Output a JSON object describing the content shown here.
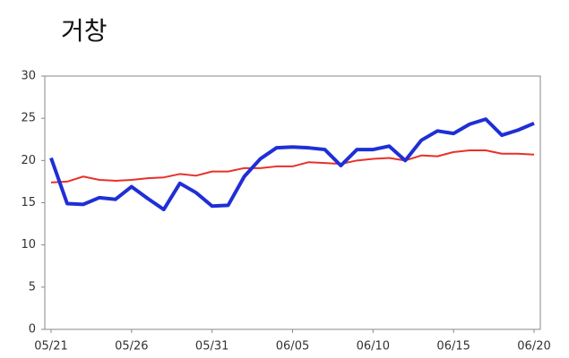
{
  "chart_data": {
    "type": "line",
    "title": "거창",
    "categories": [
      "05/21",
      null,
      null,
      null,
      null,
      "05/26",
      null,
      null,
      null,
      null,
      "05/31",
      null,
      null,
      null,
      null,
      "06/05",
      null,
      null,
      null,
      null,
      "06/10",
      null,
      null,
      null,
      null,
      "06/15",
      null,
      null,
      null,
      null,
      "06/20"
    ],
    "series": [
      {
        "color": "#1f2fd6",
        "values": [
          20.3,
          14.9,
          14.8,
          15.6,
          15.4,
          16.9,
          15.5,
          14.2,
          17.3,
          16.2,
          14.6,
          14.7,
          18.1,
          20.2,
          21.5,
          21.6,
          21.5,
          21.3,
          19.4,
          21.3,
          21.3,
          21.7,
          20.0,
          22.4,
          23.5,
          23.2,
          24.3,
          24.9,
          23.0,
          23.6,
          24.4
        ]
      },
      {
        "color": "#e8302a",
        "values": [
          17.4,
          17.5,
          18.1,
          17.7,
          17.6,
          17.7,
          17.9,
          18.0,
          18.4,
          18.2,
          18.7,
          18.7,
          19.1,
          19.1,
          19.3,
          19.3,
          19.8,
          19.7,
          19.6,
          20.0,
          20.2,
          20.3,
          20.0,
          20.6,
          20.5,
          21.0,
          21.2,
          21.2,
          20.8,
          20.8,
          20.7
        ]
      }
    ],
    "ylim": [
      0,
      30
    ],
    "yticks": [
      0,
      5,
      10,
      15,
      20,
      25,
      30
    ]
  }
}
